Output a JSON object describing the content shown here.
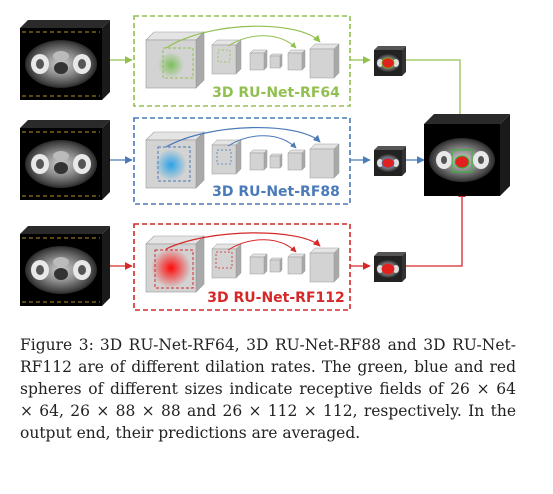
{
  "figure": {
    "networks": [
      {
        "name": "3D RU-Net-RF64",
        "color": "#92c050",
        "sphere": "#7cc05a",
        "mask": "#e12020"
      },
      {
        "name": "3D RU-Net-RF88",
        "color": "#4a7ab8",
        "sphere": "#2aa3e8",
        "mask": "#e12020"
      },
      {
        "name": "3D RU-Net-RF112",
        "color": "#d62828",
        "sphere": "#ee1111",
        "mask": "#e12020"
      }
    ],
    "output_color": "#2eb82e"
  },
  "caption": {
    "label": "Figure 3:",
    "text": "3D RU-Net-RF64, 3D RU-Net-RF88 and 3D RU-Net-RF112 are of different dilation rates. The green, blue and red spheres of different sizes indicate receptive fields of 26 × 64 × 64, 26 × 88 × 88 and 26 × 112 × 112, respectively. In the output end, their predictions are averaged."
  }
}
